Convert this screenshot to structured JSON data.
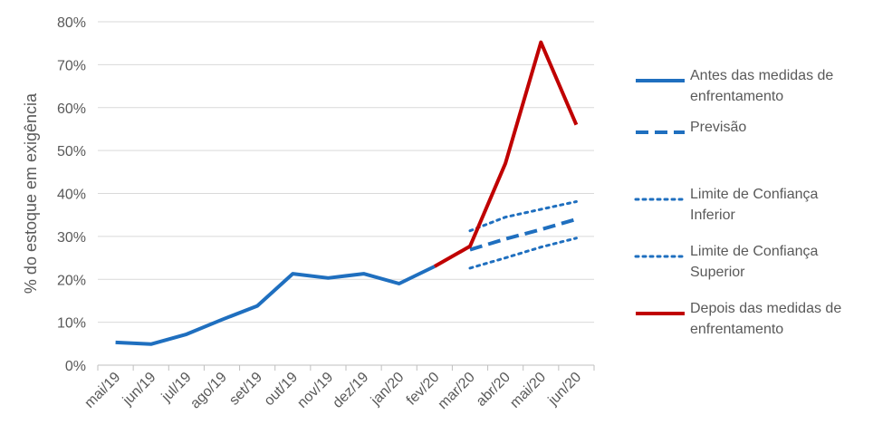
{
  "chart_data": {
    "type": "line",
    "title": "",
    "xlabel": "",
    "ylabel": "% do estoque em exigência",
    "categories": [
      "mai/19",
      "jun/19",
      "jul/19",
      "ago/19",
      "set/19",
      "out/19",
      "nov/19",
      "dez/19",
      "jan/20",
      "fev/20",
      "mar/20",
      "abr/20",
      "mai/20",
      "jun/20"
    ],
    "y_ticks": [
      "0%",
      "10%",
      "20%",
      "30%",
      "40%",
      "50%",
      "60%",
      "70%",
      "80%"
    ],
    "ylim": [
      0,
      80
    ],
    "y_unit": "%",
    "grid": "horizontal",
    "legend_position": "right",
    "series": [
      {
        "name": "Antes das medidas de enfrentamento",
        "style": "solid",
        "color": "#1F6FBF",
        "values": [
          5.3,
          4.9,
          7.2,
          10.6,
          13.8,
          21.3,
          20.3,
          21.3,
          19.0,
          23.0,
          null,
          null,
          null,
          null
        ]
      },
      {
        "name": "Previsão",
        "style": "dashed",
        "color": "#1F6FBF",
        "values": [
          null,
          null,
          null,
          null,
          null,
          null,
          null,
          null,
          null,
          null,
          26.9,
          29.4,
          31.6,
          34.0
        ]
      },
      {
        "name": "Limite de Confiança Inferior",
        "style": "dotted",
        "color": "#1F6FBF",
        "values": [
          null,
          null,
          null,
          null,
          null,
          null,
          null,
          null,
          null,
          null,
          31.3,
          34.5,
          36.3,
          38.1
        ]
      },
      {
        "name": "Limite de Confiança Superior",
        "style": "dotted",
        "color": "#1F6FBF",
        "values": [
          null,
          null,
          null,
          null,
          null,
          null,
          null,
          null,
          null,
          null,
          22.6,
          25.0,
          27.5,
          29.6
        ]
      },
      {
        "name": "Depois das medidas de enfrentamento",
        "style": "solid",
        "color": "#C00000",
        "values": [
          null,
          null,
          null,
          null,
          null,
          null,
          null,
          null,
          null,
          23.0,
          27.7,
          47.0,
          75.2,
          56.0
        ]
      }
    ]
  }
}
